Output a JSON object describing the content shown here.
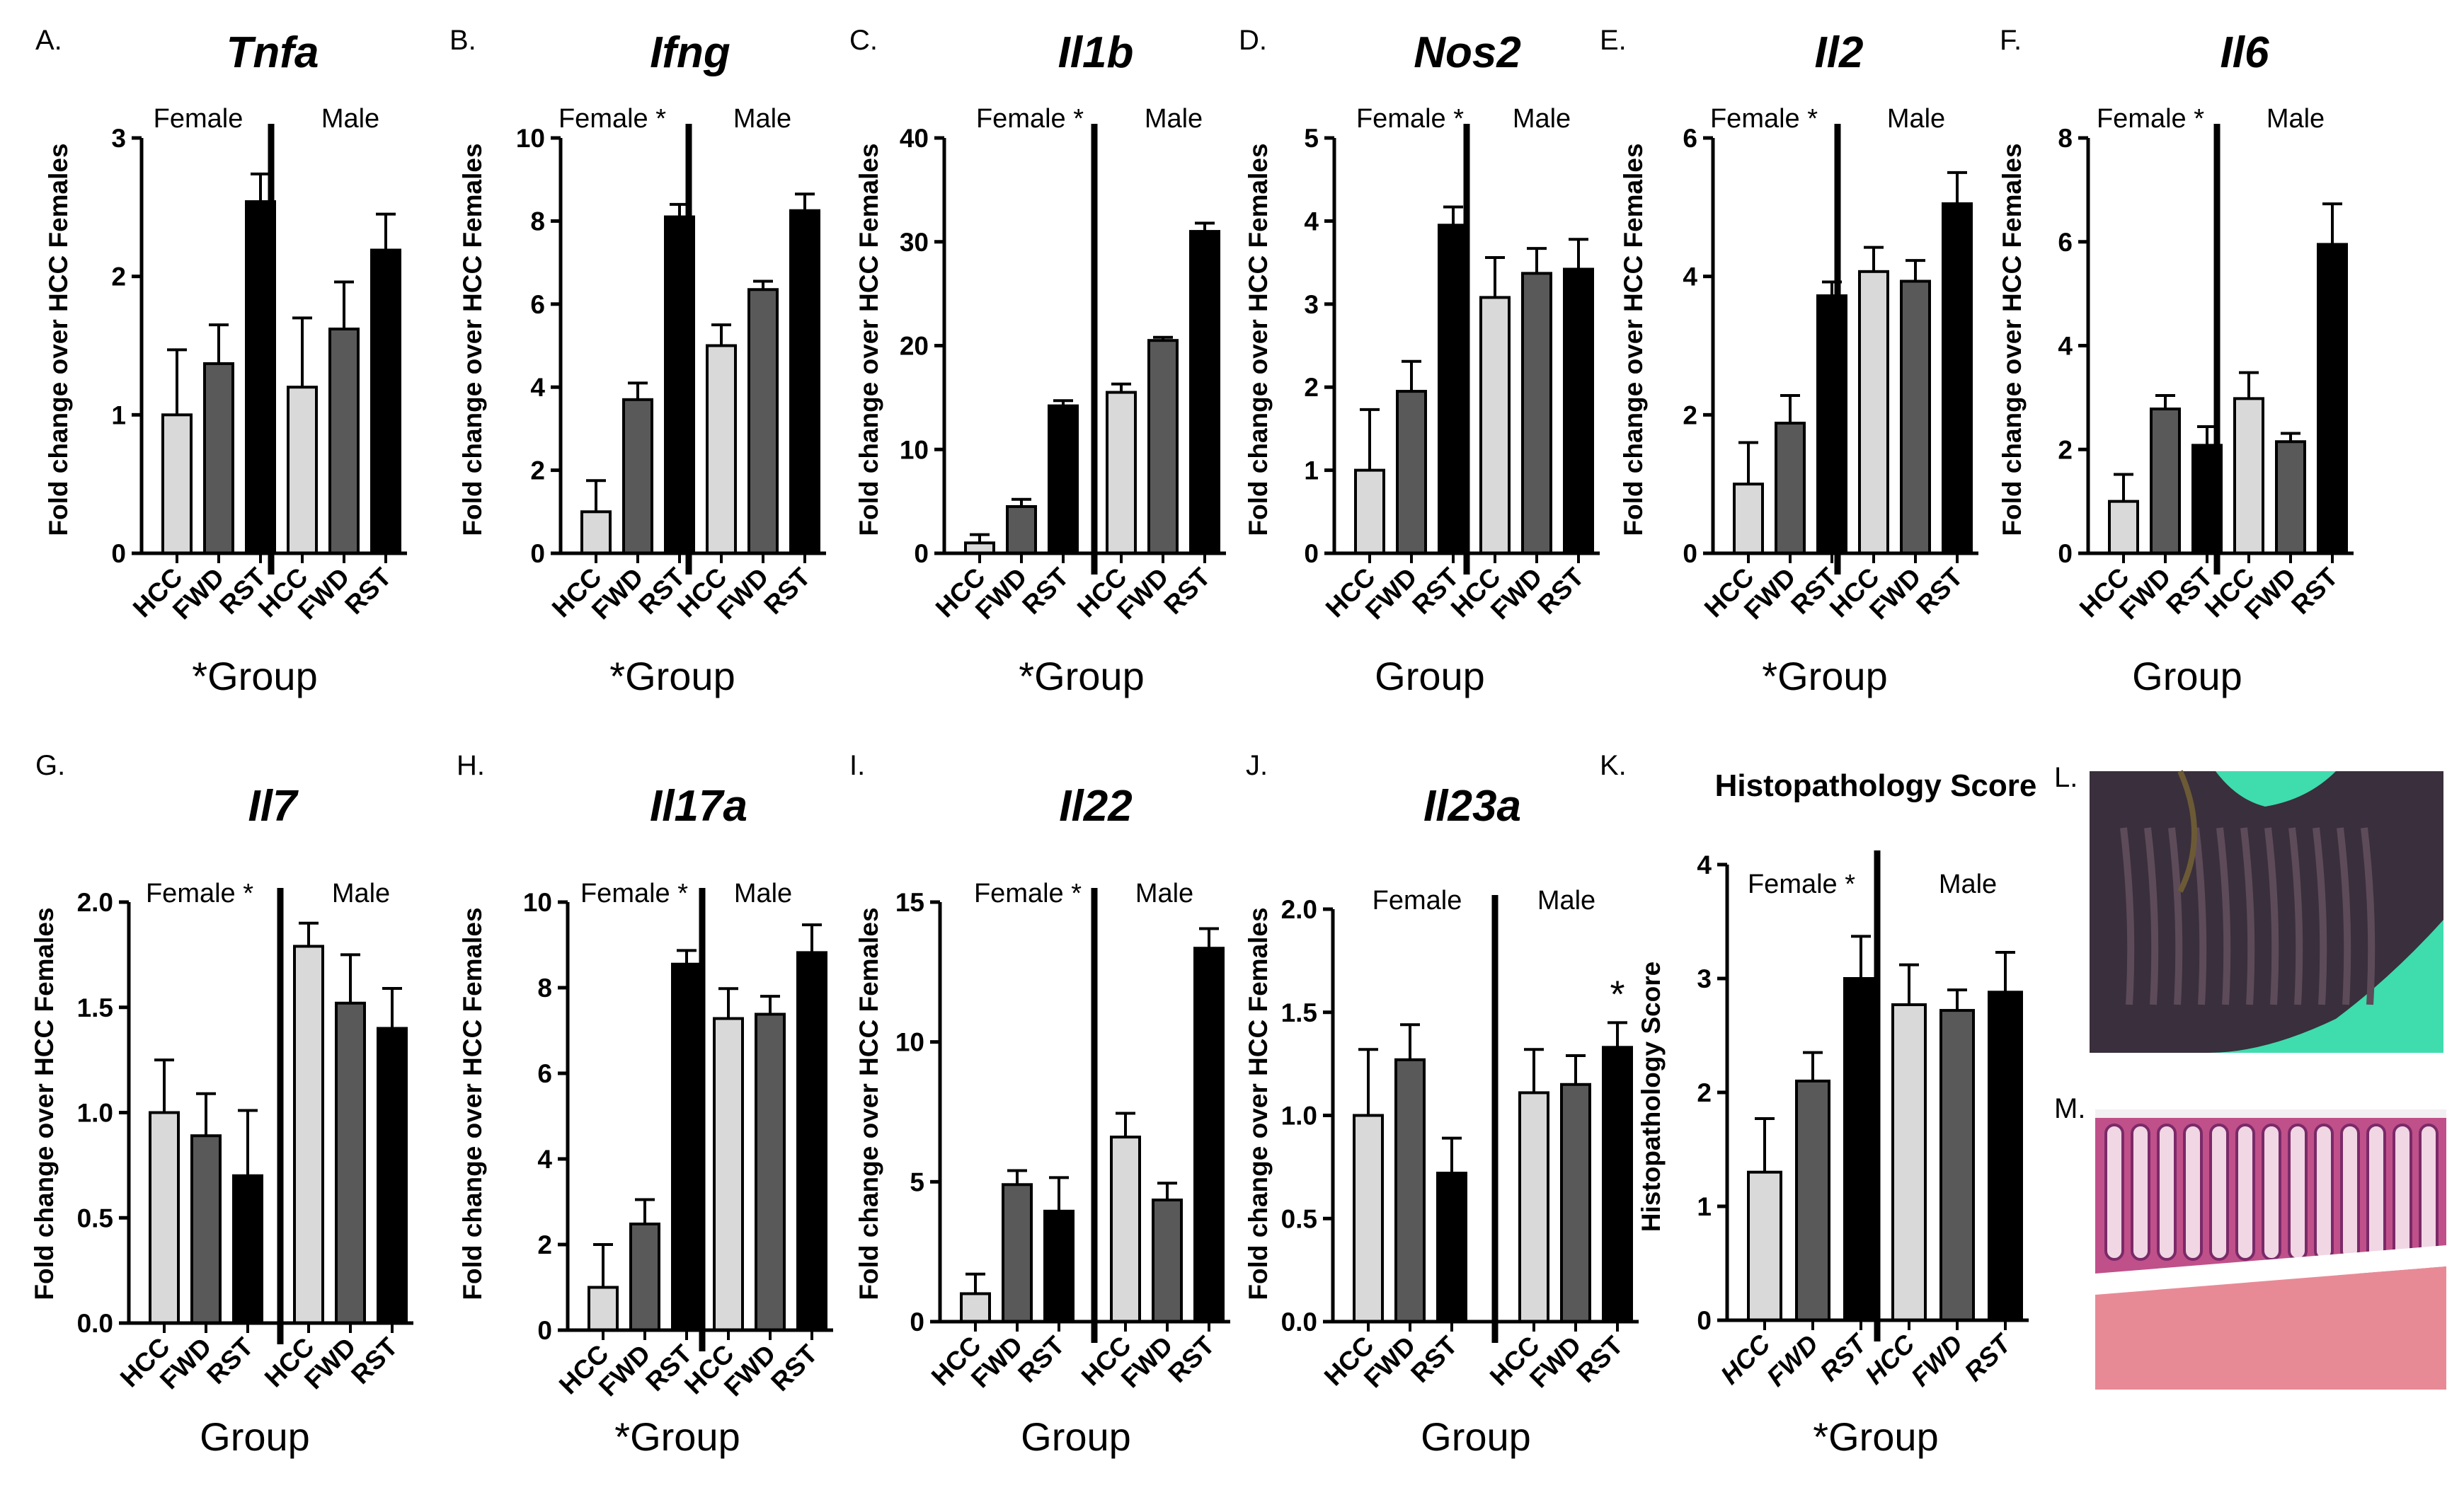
{
  "chart_data": [
    {
      "panel": "A.",
      "type": "bar",
      "title": "Tnfa",
      "title_italic": true,
      "ylabel": "Fold change over HCC Females",
      "ylim": [
        0,
        3
      ],
      "yticks": [
        "0",
        "1",
        "2",
        "3"
      ],
      "categories": [
        "HCC",
        "FWD",
        "RST",
        "HCC",
        "FWD",
        "RST"
      ],
      "values": [
        1.0,
        1.37,
        2.54,
        1.2,
        1.62,
        2.19
      ],
      "errors": [
        0.47,
        0.28,
        0.2,
        0.5,
        0.34,
        0.26
      ],
      "groups": [
        "Female",
        "Male"
      ],
      "xlabel": "*Group"
    },
    {
      "panel": "B.",
      "type": "bar",
      "title": "Ifng",
      "title_italic": true,
      "ylabel": "Fold change over HCC Females",
      "ylim": [
        0,
        10
      ],
      "yticks": [
        "0",
        "2",
        "4",
        "6",
        "8",
        "10"
      ],
      "categories": [
        "HCC",
        "FWD",
        "RST",
        "HCC",
        "FWD",
        "RST"
      ],
      "values": [
        1.0,
        3.7,
        8.1,
        5.0,
        6.35,
        8.25
      ],
      "errors": [
        0.75,
        0.4,
        0.3,
        0.5,
        0.2,
        0.4
      ],
      "groups": [
        "Female *",
        "Male"
      ],
      "xlabel": "*Group"
    },
    {
      "panel": "C.",
      "type": "bar",
      "title": "Il1b",
      "title_italic": true,
      "ylabel": "Fold change over HCC Females",
      "ylim": [
        0,
        40
      ],
      "yticks": [
        "0",
        "10",
        "20",
        "30",
        "40"
      ],
      "categories": [
        "HCC",
        "FWD",
        "RST",
        "HCC",
        "FWD",
        "RST"
      ],
      "values": [
        1.0,
        4.5,
        14.2,
        15.5,
        20.5,
        31.0
      ],
      "errors": [
        0.8,
        0.7,
        0.5,
        0.8,
        0.3,
        0.8
      ],
      "groups": [
        "Female *",
        "Male"
      ],
      "xlabel": "*Group"
    },
    {
      "panel": "D.",
      "type": "bar",
      "title": "Nos2",
      "title_italic": true,
      "ylabel": "Fold change over HCC Females",
      "ylim": [
        0,
        5
      ],
      "yticks": [
        "0",
        "1",
        "2",
        "3",
        "4",
        "5"
      ],
      "categories": [
        "HCC",
        "FWD",
        "RST",
        "HCC",
        "FWD",
        "RST"
      ],
      "values": [
        1.0,
        1.95,
        3.95,
        3.08,
        3.37,
        3.42
      ],
      "errors": [
        0.73,
        0.36,
        0.22,
        0.48,
        0.3,
        0.36
      ],
      "groups": [
        "Female *",
        "Male"
      ],
      "xlabel": "Group"
    },
    {
      "panel": "E.",
      "type": "bar",
      "title": "Il2",
      "title_italic": true,
      "ylabel": "Fold change over HCC Females",
      "ylim": [
        0,
        6
      ],
      "yticks": [
        "0",
        "2",
        "4",
        "6"
      ],
      "categories": [
        "HCC",
        "FWD",
        "RST",
        "HCC",
        "FWD",
        "RST"
      ],
      "values": [
        1.0,
        1.88,
        3.72,
        4.07,
        3.93,
        5.05
      ],
      "errors": [
        0.6,
        0.4,
        0.2,
        0.35,
        0.3,
        0.45
      ],
      "groups": [
        "Female *",
        "Male"
      ],
      "xlabel": "*Group"
    },
    {
      "panel": "F.",
      "type": "bar",
      "title": "Il6",
      "title_italic": true,
      "ylabel": "Fold change over HCC Females",
      "ylim": [
        0,
        8
      ],
      "yticks": [
        "0",
        "2",
        "4",
        "6",
        "8"
      ],
      "categories": [
        "HCC",
        "FWD",
        "RST",
        "HCC",
        "FWD",
        "RST"
      ],
      "values": [
        1.0,
        2.78,
        2.08,
        2.98,
        2.15,
        5.95
      ],
      "errors": [
        0.52,
        0.26,
        0.36,
        0.5,
        0.16,
        0.78
      ],
      "groups": [
        "Female *",
        "Male"
      ],
      "xlabel": "Group"
    },
    {
      "panel": "G.",
      "type": "bar",
      "title": "Il7",
      "title_italic": true,
      "ylabel": "Fold change over HCC Females",
      "ylim": [
        0,
        2
      ],
      "yticks": [
        "0.0",
        "0.5",
        "1.0",
        "1.5",
        "2.0"
      ],
      "categories": [
        "HCC",
        "FWD",
        "RST",
        "HCC",
        "FWD",
        "RST"
      ],
      "values": [
        1.0,
        0.89,
        0.7,
        1.79,
        1.52,
        1.4
      ],
      "errors": [
        0.25,
        0.2,
        0.31,
        0.11,
        0.23,
        0.19
      ],
      "groups": [
        "Female *",
        "Male"
      ],
      "xlabel": "Group"
    },
    {
      "panel": "H.",
      "type": "bar",
      "title": "Il17a",
      "title_italic": true,
      "ylabel": "Fold change over HCC Females",
      "ylim": [
        0,
        10
      ],
      "yticks": [
        "0",
        "2",
        "4",
        "6",
        "8",
        "10"
      ],
      "categories": [
        "HCC",
        "FWD",
        "RST",
        "HCC",
        "FWD",
        "RST"
      ],
      "values": [
        1.0,
        2.48,
        8.55,
        7.28,
        7.38,
        8.82
      ],
      "errors": [
        1.0,
        0.57,
        0.32,
        0.7,
        0.42,
        0.65
      ],
      "groups": [
        "Female *",
        "Male"
      ],
      "xlabel": "*Group"
    },
    {
      "panel": "I.",
      "type": "bar",
      "title": "Il22",
      "title_italic": true,
      "ylabel": "Fold change over HCC Females",
      "ylim": [
        0,
        15
      ],
      "yticks": [
        "0",
        "5",
        "10",
        "15"
      ],
      "categories": [
        "HCC",
        "FWD",
        "RST",
        "HCC",
        "FWD",
        "RST"
      ],
      "values": [
        1.0,
        4.9,
        3.95,
        6.6,
        4.35,
        13.35
      ],
      "errors": [
        0.7,
        0.5,
        1.2,
        0.85,
        0.6,
        0.7
      ],
      "groups": [
        "Female *",
        "Male"
      ],
      "xlabel": "Group"
    },
    {
      "panel": "J.",
      "type": "bar",
      "title": "Il23a",
      "title_italic": true,
      "ylabel": "Fold change over HCC Females",
      "ylim": [
        0,
        2
      ],
      "yticks": [
        "0.0",
        "0.5",
        "1.0",
        "1.5",
        "2.0"
      ],
      "categories": [
        "HCC",
        "FWD",
        "RST",
        "HCC",
        "FWD",
        "RST"
      ],
      "values": [
        1.0,
        1.27,
        0.72,
        1.11,
        1.15,
        1.33
      ],
      "errors": [
        0.32,
        0.17,
        0.17,
        0.21,
        0.14,
        0.12
      ],
      "groups": [
        "Female",
        "Male"
      ],
      "annotation": "*",
      "xlabel": "Group"
    },
    {
      "panel": "K.",
      "type": "bar",
      "title": "Histopathology Score",
      "title_italic": false,
      "ylabel": "Histopathology Score",
      "ylim": [
        0,
        4
      ],
      "yticks": [
        "0",
        "1",
        "2",
        "3",
        "4"
      ],
      "categories": [
        "HCC",
        "FWD",
        "RST",
        "HCC",
        "FWD",
        "RST"
      ],
      "values": [
        1.3,
        2.1,
        3.0,
        2.77,
        2.72,
        2.88
      ],
      "errors": [
        0.47,
        0.25,
        0.37,
        0.35,
        0.18,
        0.35
      ],
      "groups": [
        "Female *",
        "Male"
      ],
      "xlabel": "*Group"
    }
  ],
  "images": [
    {
      "panel": "L.",
      "description_name": "histology-micrograph-dark-stain"
    },
    {
      "panel": "M.",
      "description_name": "histology-micrograph-he-stain"
    }
  ],
  "colors": {
    "light": "#d9d9d9",
    "mid": "#595959",
    "dark": "#000000",
    "stainL_bg": "#3fdcae",
    "stainL_tissue": "#3a2f3c",
    "stainM_bg": "#f3f0f2",
    "stainM_tissue": "#c0508a",
    "stainM_muscle": "#e88a96"
  }
}
